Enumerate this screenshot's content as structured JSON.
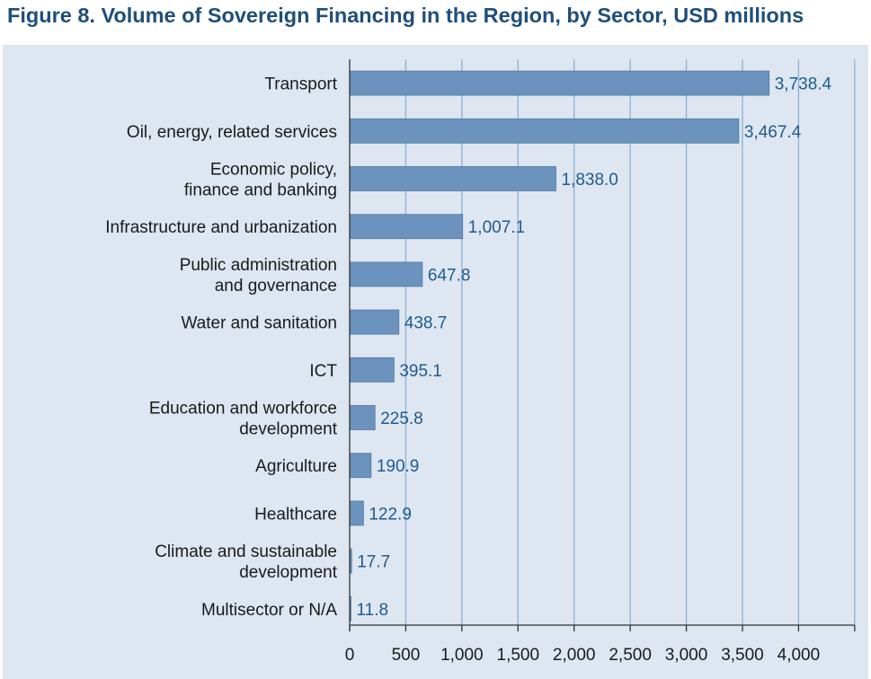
{
  "title": "Figure 8. Volume of Sovereign Financing in the Region, by Sector, USD millions",
  "colors": {
    "panel_background": "#dde6f1",
    "bar": "#6b93bd",
    "bar_edge": "#4f7aa6",
    "gridline": "#8fb0d2",
    "value_label": "#1f5b8e",
    "title": "#1f4e79"
  },
  "chart_data": {
    "type": "bar",
    "orientation": "horizontal",
    "title": "Figure 8. Volume of Sovereign Financing in the Region, by Sector, USD millions",
    "xlabel": "",
    "ylabel": "",
    "xlim": [
      0,
      4500
    ],
    "grid": true,
    "categories": [
      [
        "Transport"
      ],
      [
        "Oil, energy, related services"
      ],
      [
        "Economic policy,",
        "finance and banking"
      ],
      [
        "Infrastructure and urbanization"
      ],
      [
        "Public administration",
        "and governance"
      ],
      [
        "Water and sanitation"
      ],
      [
        "ICT"
      ],
      [
        "Education and workforce",
        "development"
      ],
      [
        "Agriculture"
      ],
      [
        "Healthcare"
      ],
      [
        "Climate and sustainable",
        "development"
      ],
      [
        "Multisector or N/A"
      ]
    ],
    "values": [
      3738.4,
      3467.4,
      1838.0,
      1007.1,
      647.8,
      438.7,
      395.1,
      225.8,
      190.9,
      122.9,
      17.7,
      11.8
    ],
    "value_labels": [
      "3,738.4",
      "3,467.4",
      "1,838.0",
      "1,007.1",
      "647.8",
      "438.7",
      "395.1",
      "225.8",
      "190.9",
      "122.9",
      "17.7",
      "11.8"
    ],
    "x_ticks": [
      0,
      500,
      1000,
      1500,
      2000,
      2500,
      3000,
      3500,
      4000
    ],
    "x_tick_labels": [
      "0",
      "500",
      "1,000",
      "1,500",
      "2,000",
      "2,500",
      "3,000",
      "3,500",
      "4,000"
    ]
  }
}
